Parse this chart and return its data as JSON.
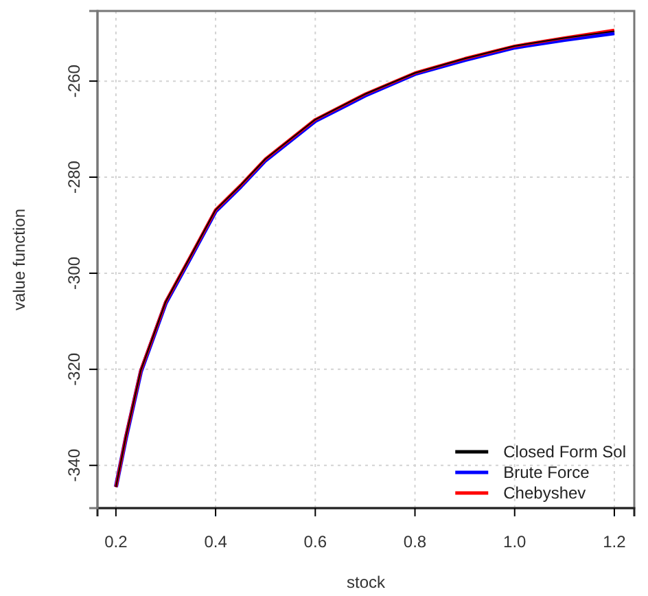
{
  "chart_data": {
    "type": "line",
    "xlabel": "stock",
    "ylabel": "value function",
    "xlim": [
      0.163,
      1.24
    ],
    "ylim": [
      -348.9,
      -245.4
    ],
    "xticks": [
      {
        "value": 0.2,
        "label": "0.2"
      },
      {
        "value": 0.4,
        "label": "0.4"
      },
      {
        "value": 0.6,
        "label": "0.6"
      },
      {
        "value": 0.8,
        "label": "0.8"
      },
      {
        "value": 1.0,
        "label": "1.0"
      },
      {
        "value": 1.2,
        "label": "1.2"
      }
    ],
    "yticks": [
      -340,
      -320,
      -300,
      -280,
      -260
    ],
    "grid": true,
    "legend": "bottom right",
    "line_style": "solid",
    "x": [
      0.2,
      0.22,
      0.25,
      0.3,
      0.35,
      0.4,
      0.45,
      0.5,
      0.6,
      0.7,
      0.8,
      0.9,
      1.0,
      1.1,
      1.2
    ],
    "series": [
      {
        "name": "Closed Form Sol",
        "color": "#000000",
        "values": [
          -344.5,
          -334,
          -320.2,
          -305.9,
          -296.4,
          -286.8,
          -281.7,
          -276.2,
          -268.0,
          -262.7,
          -258.3,
          -255.3,
          -252.7,
          -251.0,
          -249.6
        ]
      },
      {
        "name": "Brute Force",
        "color": "#0000ff",
        "values": [
          -344.5,
          -334.3,
          -320.5,
          -306.2,
          -296.7,
          -287.1,
          -282.0,
          -276.5,
          -268.3,
          -263.0,
          -258.5,
          -255.6,
          -253.0,
          -251.4,
          -250.0
        ]
      },
      {
        "name": "Chebyshev",
        "color": "#ff0000",
        "values": [
          -344.5,
          -334,
          -320.2,
          -305.9,
          -296.4,
          -286.8,
          -281.7,
          -276.2,
          -268.0,
          -262.7,
          -258.3,
          -255.3,
          -252.7,
          -251.0,
          -249.4
        ]
      }
    ]
  }
}
